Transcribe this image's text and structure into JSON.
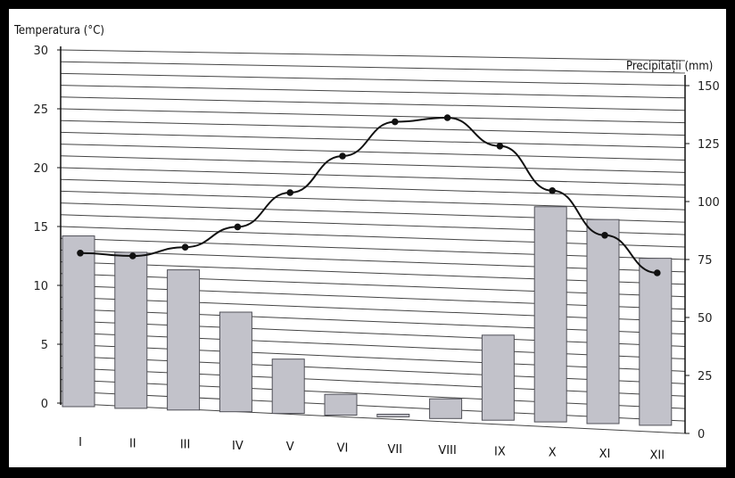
{
  "chart_data": {
    "type": "bar",
    "ylabel_left": "Temperatura (°C)",
    "ylabel_right": "Precipitații (mm)",
    "categories": [
      "I",
      "II",
      "III",
      "IV",
      "V",
      "VI",
      "VII",
      "VIII",
      "IX",
      "X",
      "XI",
      "XII"
    ],
    "temperature_ylim": [
      0,
      30
    ],
    "temperature_ticks": [
      0,
      5,
      10,
      15,
      20,
      25,
      30
    ],
    "precipitation_ylim": [
      0,
      150
    ],
    "precipitation_ticks": [
      0,
      25,
      50,
      75,
      100,
      125,
      150
    ],
    "series": [
      {
        "type": "bar",
        "axis": "left",
        "values": [
          14.2,
          12.9,
          11.5,
          8.0,
          4.1,
          1.2,
          -0.4,
          1.0,
          6.5,
          17.5,
          16.5,
          13.3
        ]
      },
      {
        "type": "line",
        "axis": "right",
        "values": [
          77,
          76,
          80,
          89,
          104,
          120,
          135,
          137,
          125,
          106,
          87,
          71
        ]
      }
    ],
    "grid": true,
    "colors": {
      "bar_fill": "#c2c2ca",
      "bar_stroke": "#505058",
      "line": "#111111",
      "grid": "#444444"
    }
  }
}
